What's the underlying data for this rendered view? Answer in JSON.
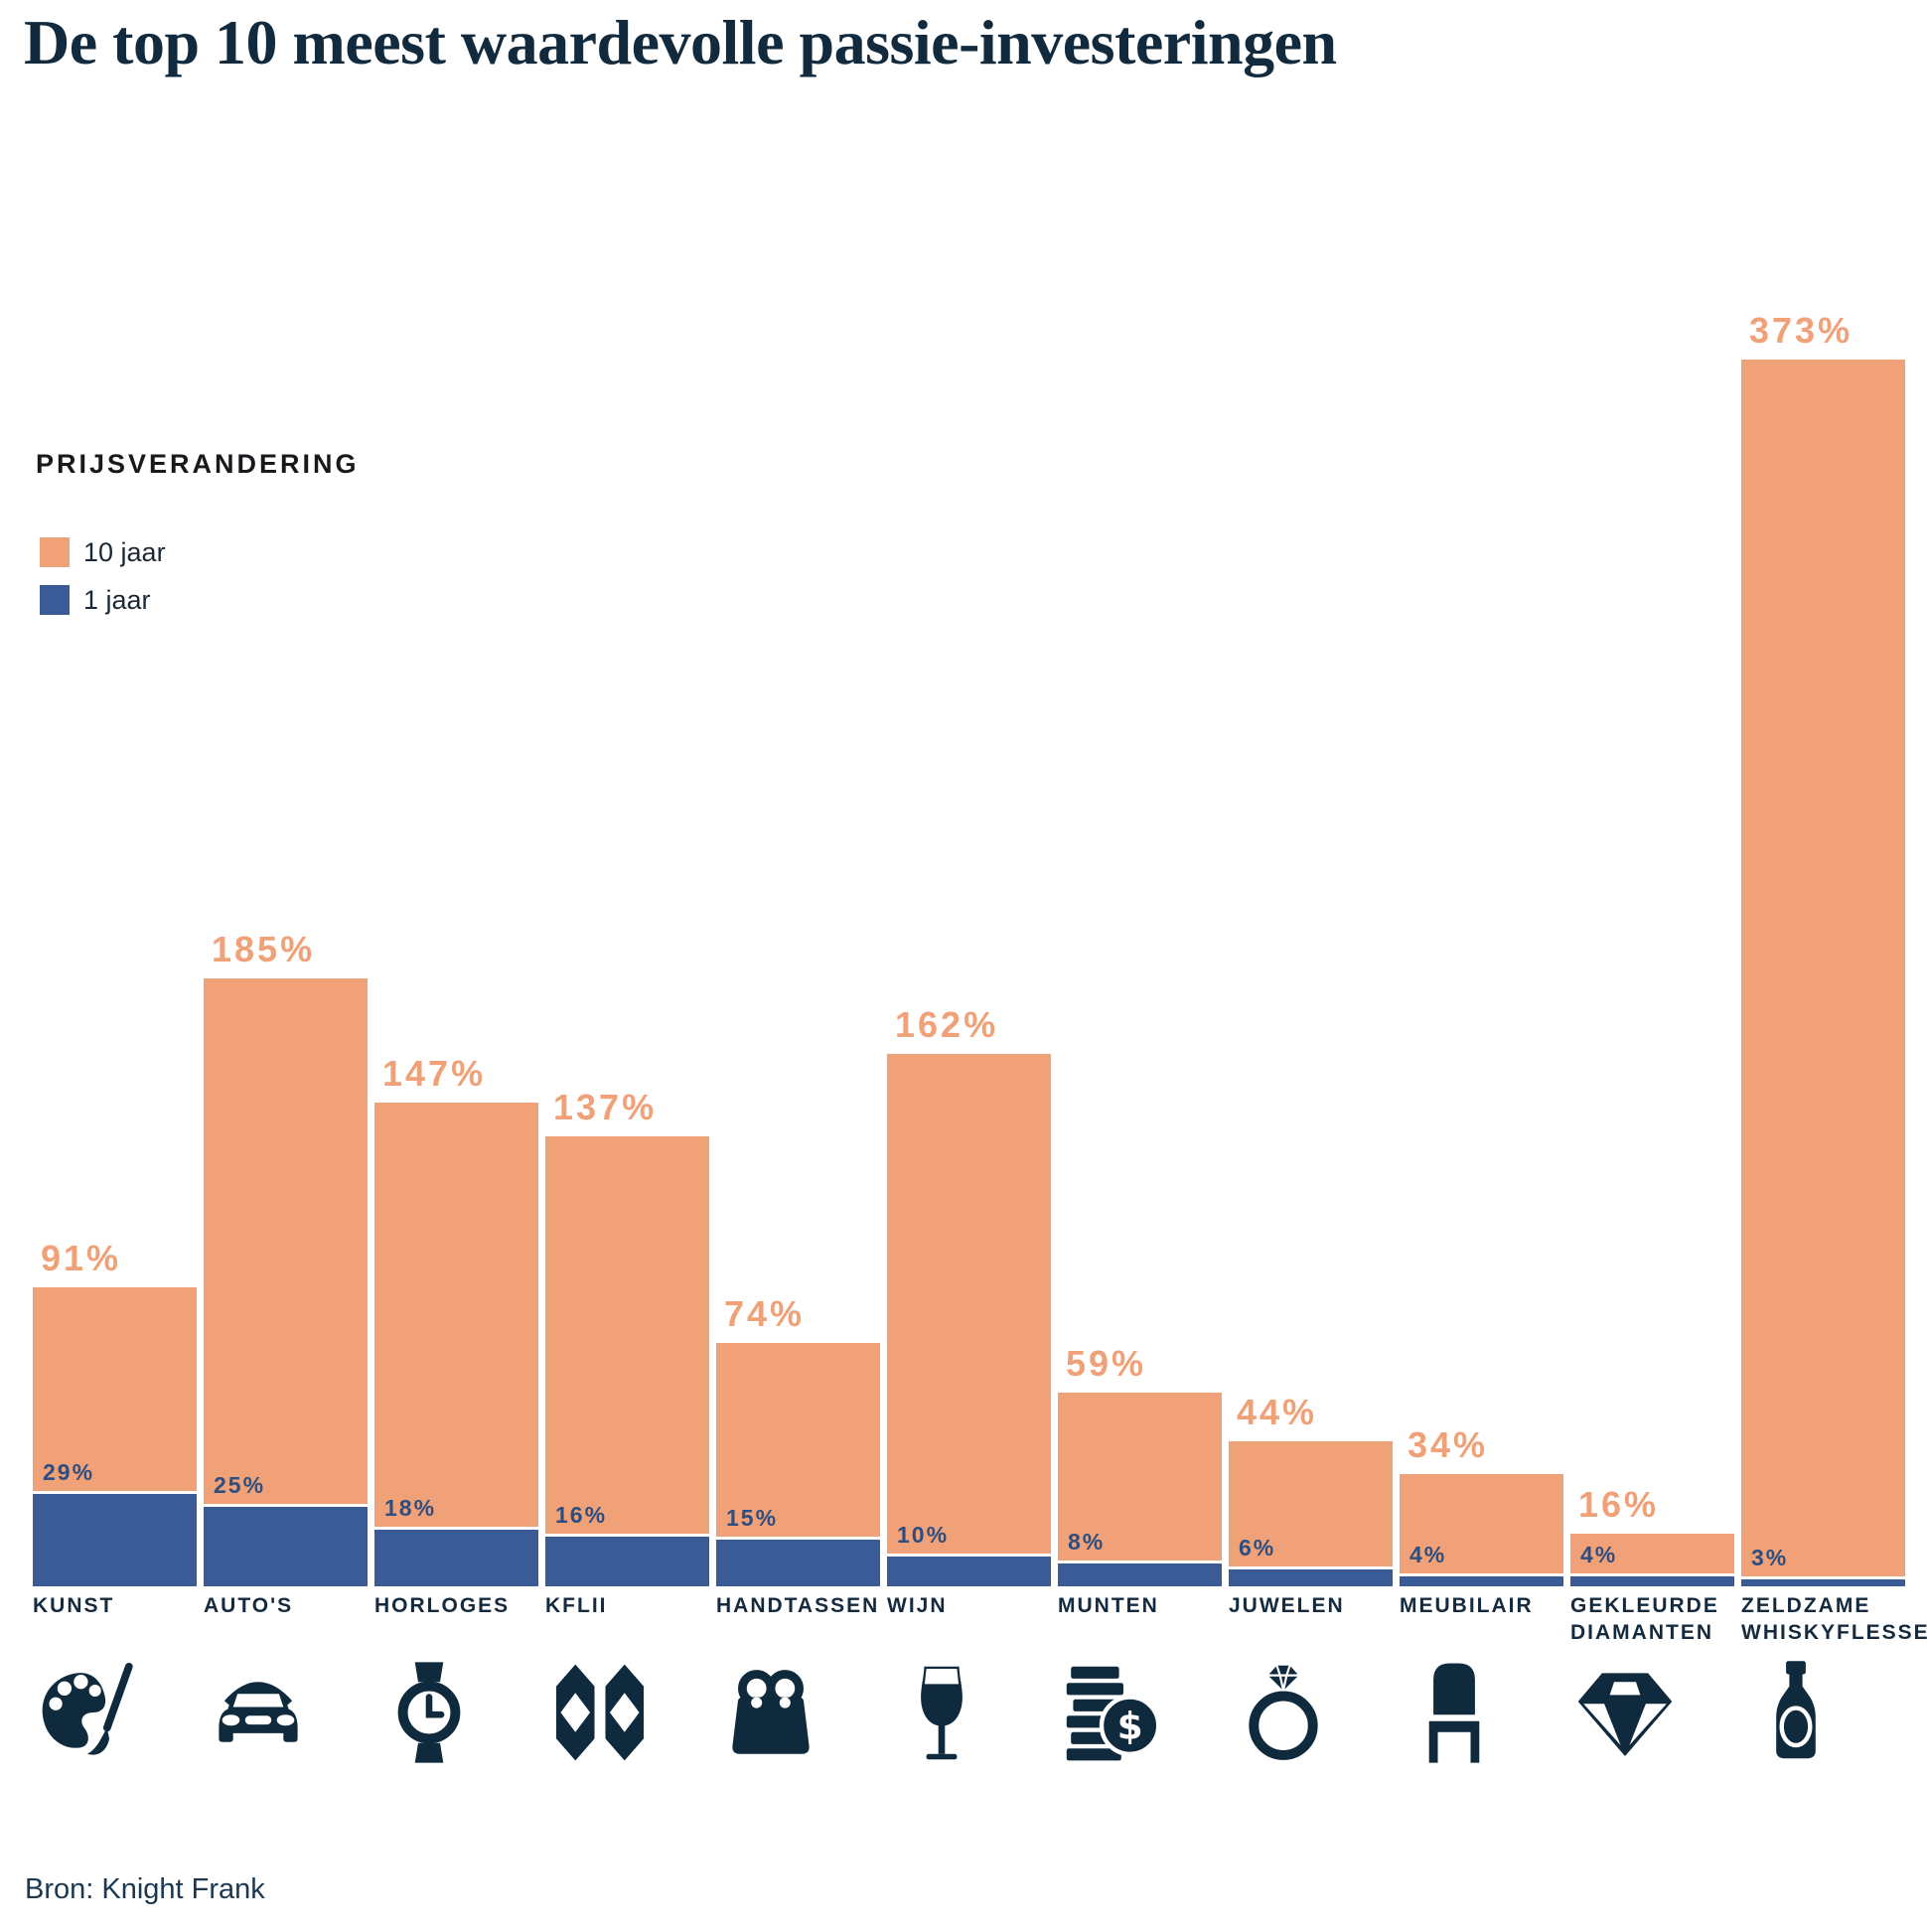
{
  "title": "De top 10 meest waardevolle passie-investeringen",
  "legend": {
    "title": "PRIJSVERANDERING",
    "items": [
      {
        "label": "10 jaar",
        "color": "#F0A178"
      },
      {
        "label": "1 jaar",
        "color": "#3B5B96"
      }
    ]
  },
  "source": "Bron: Knight Frank",
  "colors": {
    "accent_orange": "#F0A178",
    "accent_blue": "#3B5B96",
    "navy_text": "#142A3E",
    "icon_navy": "#0F2A3D",
    "background": "#FFFFFF"
  },
  "chart_data": {
    "type": "bar",
    "title": "De top 10 meest waardevolle passie-investeringen",
    "ylabel": "PRIJSVERANDERING",
    "value_suffix": "%",
    "grid": false,
    "legend_position": "top-left",
    "categories": [
      "KUNST",
      "AUTO'S",
      "HORLOGES",
      "KFLII",
      "HANDTASSEN",
      "WIJN",
      "MUNTEN",
      "JUWELEN",
      "MEUBILAIR",
      "GEKLEURDE DIAMANTEN",
      "ZELDZAME WHISKYFLESSEN"
    ],
    "series": [
      {
        "name": "10 jaar",
        "color": "#F0A178",
        "values": [
          91,
          185,
          147,
          137,
          74,
          162,
          59,
          44,
          34,
          16,
          373
        ]
      },
      {
        "name": "1 jaar",
        "color": "#3B5B96",
        "values": [
          29,
          25,
          18,
          16,
          15,
          10,
          8,
          6,
          4,
          4,
          3
        ]
      }
    ],
    "icons": [
      "palette",
      "car",
      "wristwatch",
      "kf-index-pattern",
      "handbag",
      "wine-glass",
      "coins-dollar",
      "diamond-ring",
      "chair",
      "diamond",
      "whisky-bottle"
    ]
  }
}
